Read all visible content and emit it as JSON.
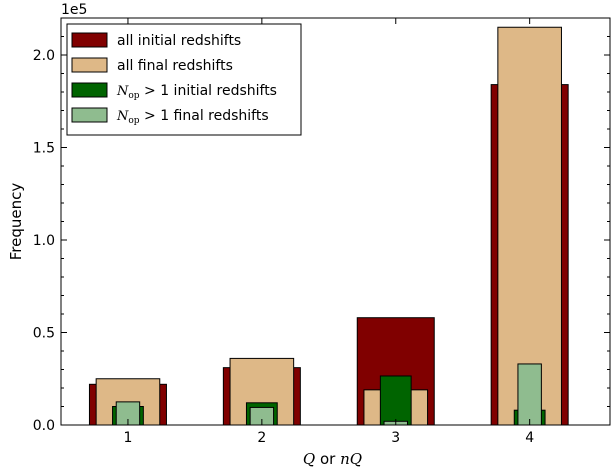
{
  "chart_data": {
    "type": "bar",
    "categories": [
      "1",
      "2",
      "3",
      "4"
    ],
    "series": [
      {
        "name": "all initial redshifts",
        "values": [
          22000,
          31000,
          58000,
          184000
        ],
        "color": "#800000"
      },
      {
        "name": "all final redshifts",
        "values": [
          25000,
          36000,
          19000,
          215000
        ],
        "color": "#deb887"
      },
      {
        "name": "N_op > 1 initial redshifts",
        "values": [
          10000,
          12000,
          26500,
          8000
        ],
        "color": "#006400"
      },
      {
        "name": "N_op > 1 final redshifts",
        "values": [
          12500,
          9500,
          2000,
          33000
        ],
        "color": "#8fbc8f"
      }
    ],
    "legend_labels": [
      {
        "prefix": "",
        "math": "",
        "sub": "",
        "text": "all initial redshifts"
      },
      {
        "prefix": "",
        "math": "",
        "sub": "",
        "text": "all final redshifts"
      },
      {
        "prefix": "",
        "math": "N",
        "sub": "op",
        "text": " > 1 initial redshifts"
      },
      {
        "prefix": "",
        "math": "N",
        "sub": "op",
        "text": " > 1 final redshifts"
      }
    ],
    "ylabel": "Frequency",
    "xlabel": {
      "math1": "Q",
      "word": " or ",
      "math2": "nQ"
    },
    "ylim": [
      0,
      220000
    ],
    "xlim": [
      0.5,
      4.6
    ],
    "yticks": [
      0,
      50000,
      100000,
      150000,
      200000
    ],
    "ytick_labels": [
      "0.0",
      "0.5",
      "1.0",
      "1.5",
      "2.0"
    ],
    "yminor_step": 10000,
    "xtick_labels": [
      "1",
      "2",
      "3",
      "4"
    ],
    "offset_label": "1e5",
    "legend_position": "top-left",
    "grid": false
  }
}
